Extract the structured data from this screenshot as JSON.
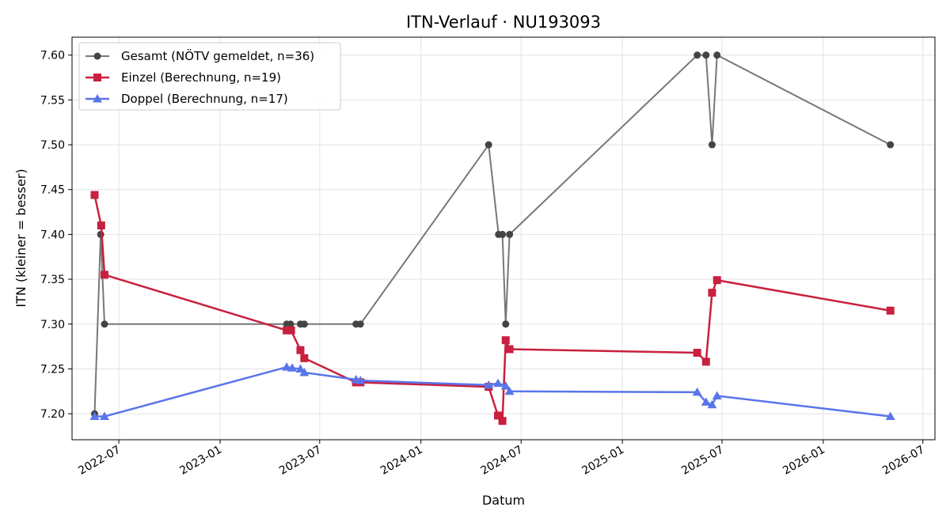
{
  "chart_data": {
    "type": "line",
    "title": "ITN-Verlauf · NU193093",
    "xlabel": "Datum",
    "ylabel": "ITN  (kleiner = besser)",
    "xlim": [
      "2022-04-07",
      "2026-07-23"
    ],
    "ylim": [
      7.171,
      7.62
    ],
    "grid": true,
    "legend_position": "top-left",
    "x_ticks": [
      "2022-07",
      "2023-01",
      "2023-07",
      "2024-01",
      "2024-07",
      "2025-01",
      "2025-07",
      "2026-01",
      "2026-07"
    ],
    "y_ticks": [
      "7.20",
      "7.25",
      "7.30",
      "7.35",
      "7.40",
      "7.45",
      "7.50",
      "7.55",
      "7.60"
    ],
    "series": [
      {
        "name": "Gesamt (NÖTV gemeldet, n=36)",
        "color": "#777777",
        "marker_color": "#444444",
        "marker": "circle",
        "points": [
          {
            "x": "2022-05-18",
            "y": 7.2
          },
          {
            "x": "2022-05-29",
            "y": 7.4
          },
          {
            "x": "2022-06-05",
            "y": 7.3
          },
          {
            "x": "2023-05-02",
            "y": 7.3
          },
          {
            "x": "2023-05-09",
            "y": 7.3
          },
          {
            "x": "2023-05-27",
            "y": 7.3
          },
          {
            "x": "2023-06-03",
            "y": 7.3
          },
          {
            "x": "2023-09-05",
            "y": 7.3
          },
          {
            "x": "2023-09-13",
            "y": 7.3
          },
          {
            "x": "2024-05-03",
            "y": 7.5
          },
          {
            "x": "2024-05-21",
            "y": 7.4
          },
          {
            "x": "2024-05-28",
            "y": 7.4
          },
          {
            "x": "2024-06-03",
            "y": 7.3
          },
          {
            "x": "2024-06-10",
            "y": 7.4
          },
          {
            "x": "2025-05-17",
            "y": 7.6
          },
          {
            "x": "2025-06-02",
            "y": 7.6
          },
          {
            "x": "2025-06-13",
            "y": 7.5
          },
          {
            "x": "2025-06-22",
            "y": 7.6
          },
          {
            "x": "2026-05-03",
            "y": 7.5
          }
        ]
      },
      {
        "name": "Einzel (Berechnung, n=19)",
        "color": "#c8203f",
        "marker_color": "#c8203f",
        "marker": "square",
        "points": [
          {
            "x": "2022-05-18",
            "y": 7.444
          },
          {
            "x": "2022-05-30",
            "y": 7.41
          },
          {
            "x": "2022-06-05",
            "y": 7.355
          },
          {
            "x": "2023-05-02",
            "y": 7.293
          },
          {
            "x": "2023-05-10",
            "y": 7.293
          },
          {
            "x": "2023-05-27",
            "y": 7.271
          },
          {
            "x": "2023-06-03",
            "y": 7.262
          },
          {
            "x": "2023-09-05",
            "y": 7.235
          },
          {
            "x": "2023-09-13",
            "y": 7.235
          },
          {
            "x": "2024-05-03",
            "y": 7.23
          },
          {
            "x": "2024-05-20",
            "y": 7.198
          },
          {
            "x": "2024-05-28",
            "y": 7.192
          },
          {
            "x": "2024-06-03",
            "y": 7.282
          },
          {
            "x": "2024-06-10",
            "y": 7.272
          },
          {
            "x": "2025-05-17",
            "y": 7.268
          },
          {
            "x": "2025-06-02",
            "y": 7.258
          },
          {
            "x": "2025-06-13",
            "y": 7.335
          },
          {
            "x": "2025-06-22",
            "y": 7.349
          },
          {
            "x": "2026-05-03",
            "y": 7.315
          }
        ]
      },
      {
        "name": "Doppel (Berechnung, n=17)",
        "color": "#5a75ea",
        "marker_color": "#5a75ea",
        "marker": "triangle",
        "points": [
          {
            "x": "2022-05-18",
            "y": 7.197
          },
          {
            "x": "2022-06-05",
            "y": 7.197
          },
          {
            "x": "2023-05-02",
            "y": 7.252
          },
          {
            "x": "2023-05-12",
            "y": 7.251
          },
          {
            "x": "2023-05-27",
            "y": 7.25
          },
          {
            "x": "2023-06-03",
            "y": 7.246
          },
          {
            "x": "2023-09-05",
            "y": 7.238
          },
          {
            "x": "2023-09-13",
            "y": 7.237
          },
          {
            "x": "2024-05-03",
            "y": 7.232
          },
          {
            "x": "2024-05-20",
            "y": 7.234
          },
          {
            "x": "2024-06-03",
            "y": 7.231
          },
          {
            "x": "2024-06-10",
            "y": 7.225
          },
          {
            "x": "2025-05-17",
            "y": 7.224
          },
          {
            "x": "2025-06-02",
            "y": 7.213
          },
          {
            "x": "2025-06-13",
            "y": 7.21
          },
          {
            "x": "2025-06-22",
            "y": 7.22
          },
          {
            "x": "2026-05-03",
            "y": 7.197
          }
        ]
      }
    ]
  }
}
